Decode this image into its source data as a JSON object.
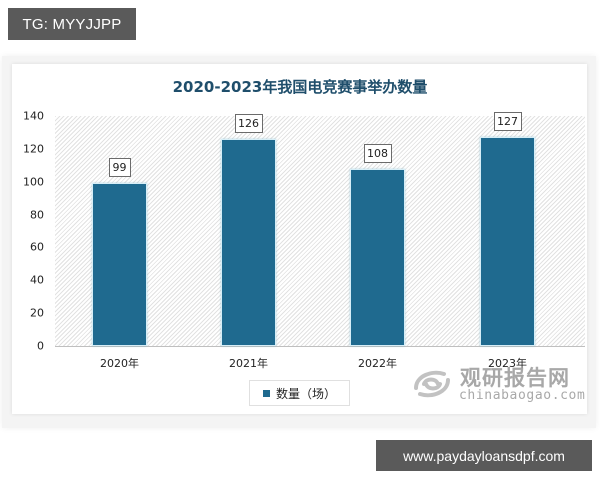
{
  "watermarks": {
    "top_left": "TG: MYYJJPP",
    "bottom_right": "www.paydayloansdpf.com"
  },
  "brand": {
    "name_cn": "观研报告网",
    "domain": "chinabaogao.com",
    "icon": "swirl-logo-icon"
  },
  "colors": {
    "bar": "#1f6a8f",
    "title": "#1f4e6b",
    "watermark_bg": "#5a5a5a"
  },
  "chart_data": {
    "type": "bar",
    "title": "2020-2023年我国电竞赛事举办数量",
    "categories": [
      "2020年",
      "2021年",
      "2022年",
      "2023年"
    ],
    "series": [
      {
        "name": "数量（场）",
        "values": [
          99,
          126,
          108,
          127
        ]
      }
    ],
    "values": [
      99,
      126,
      108,
      127
    ],
    "data_labels": [
      "99",
      "126",
      "108",
      "127"
    ],
    "xlabel": "",
    "ylabel": "",
    "ylim": [
      0,
      140
    ],
    "yticks": [
      "0",
      "20",
      "40",
      "60",
      "80",
      "100",
      "120",
      "140"
    ],
    "grid": false,
    "plot_background": "diagonal hatch",
    "legend": {
      "position": "bottom",
      "entries": [
        "数量（场）"
      ]
    }
  }
}
